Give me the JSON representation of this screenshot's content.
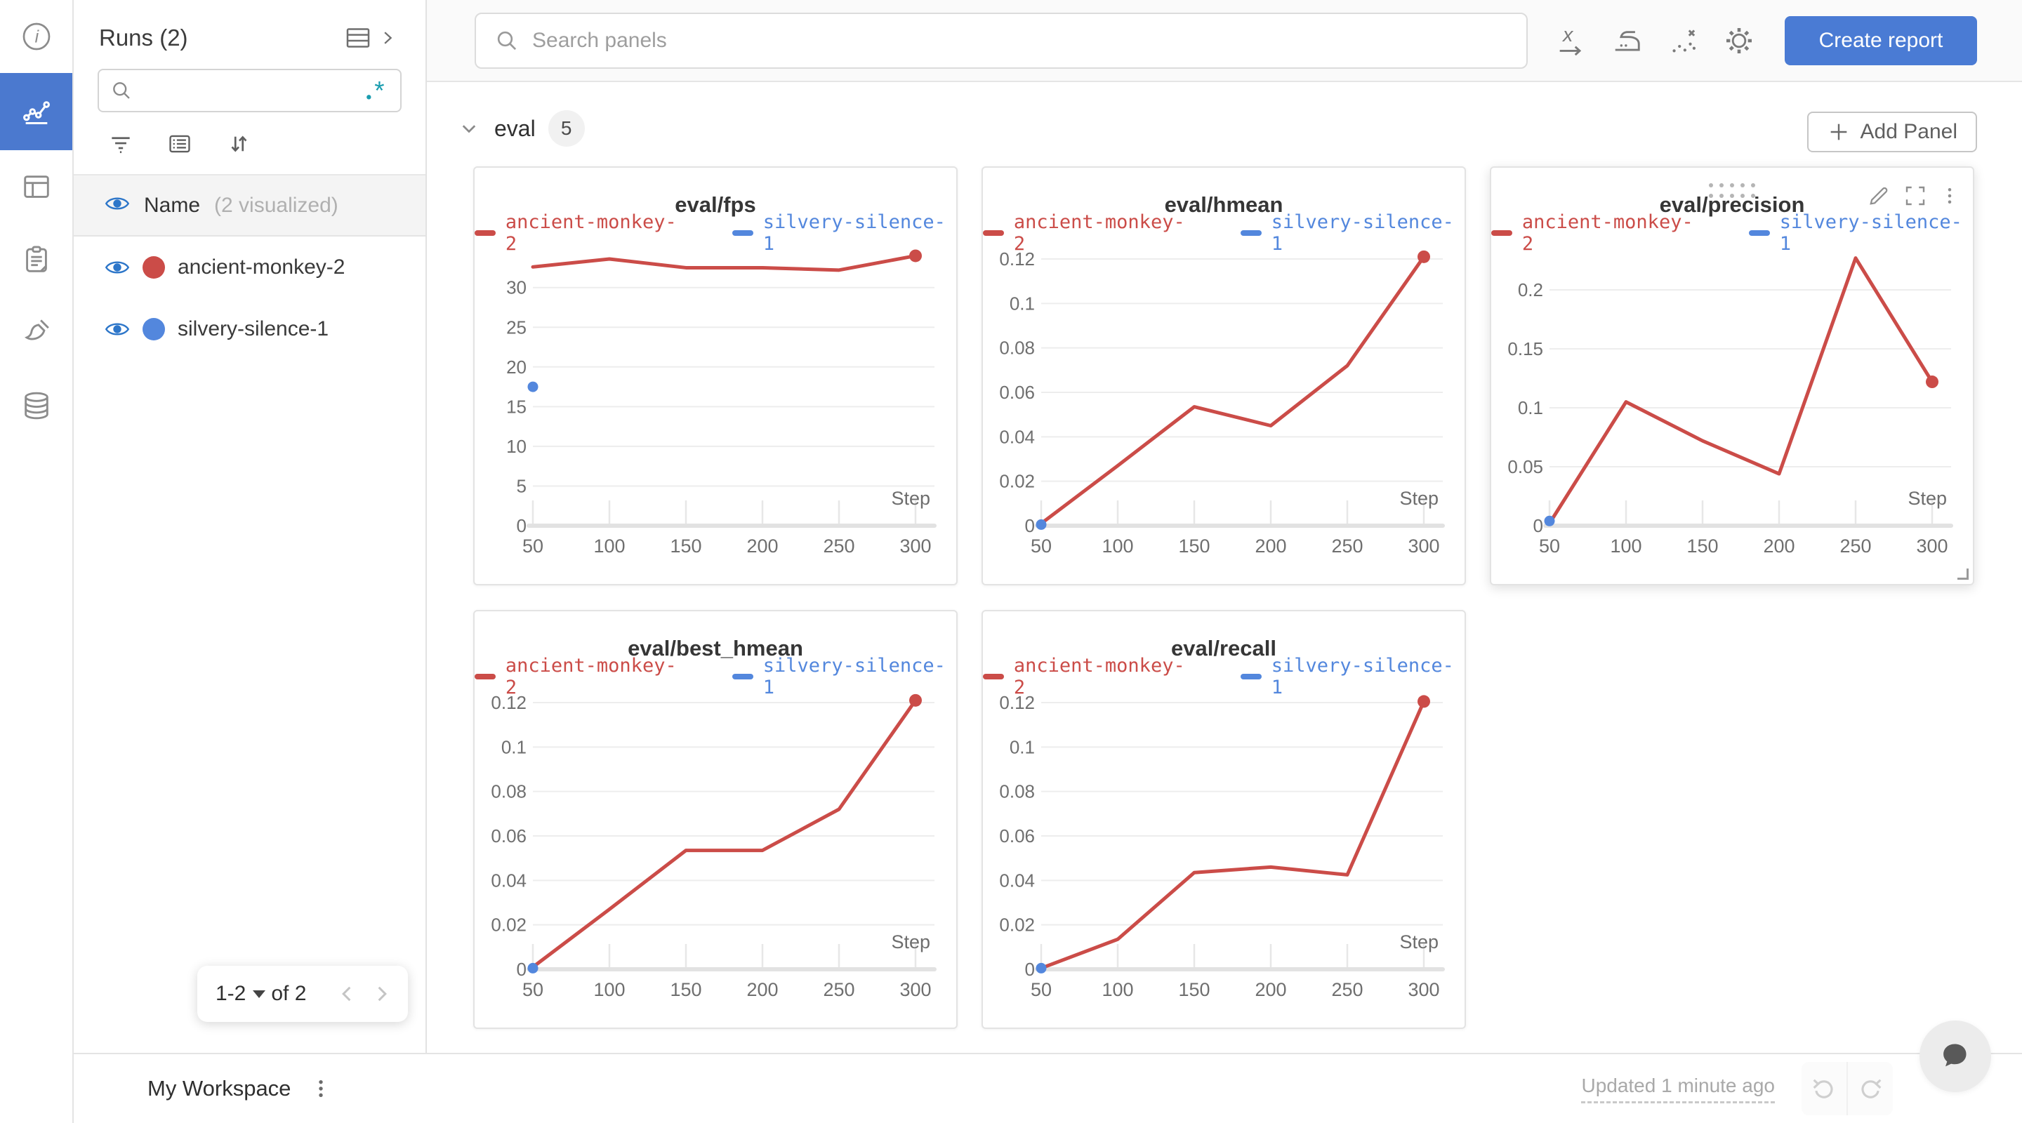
{
  "colors": {
    "accent_blue": "#4a7bd4",
    "rail_active_blue": "#4b79cf",
    "run_red": "#CB4C48",
    "run_blue": "#5387DD",
    "eye_blue": "#2d76c9",
    "regex_teal": "#1a9daf"
  },
  "rail": {
    "items": [
      "info",
      "line-chart",
      "table",
      "clipboard",
      "brush",
      "database"
    ],
    "active_item": "line-chart"
  },
  "sidebar": {
    "title": "Runs (2)",
    "search_value": "",
    "search_placeholder": "",
    "regex_label": ".*",
    "header_row": {
      "label": "Name",
      "annotation": "(2 visualized)"
    },
    "runs": [
      {
        "name": "ancient-monkey-2",
        "color": "#CB4C48",
        "visible": true
      },
      {
        "name": "silvery-silence-1",
        "color": "#5387DD",
        "visible": true
      }
    ],
    "pagination": {
      "range_label": "1-2",
      "total_label": "of 2"
    }
  },
  "topbar": {
    "search_placeholder": "Search panels",
    "create_report_label": "Create report"
  },
  "section": {
    "title": "eval",
    "badge": "5",
    "add_panel_label": "Add Panel"
  },
  "footer": {
    "workspace_label": "My Workspace",
    "updated_label": "Updated 1 minute ago"
  },
  "chart_data": [
    {
      "type": "line",
      "title": "eval/fps",
      "xlabel": "Step",
      "grid": true,
      "legend_position": "top",
      "xlim": [
        50,
        300
      ],
      "xticks": [
        50,
        100,
        150,
        200,
        250,
        300
      ],
      "ylim": [
        0,
        33.6
      ],
      "yticks": [
        0,
        5,
        10,
        15,
        20,
        25,
        30
      ],
      "series": [
        {
          "name": "ancient-monkey-2",
          "color": "#CB4C48",
          "x": [
            50,
            100,
            150,
            200,
            250,
            300
          ],
          "values": [
            32.6,
            33.6,
            32.5,
            32.5,
            32.2,
            34.0
          ],
          "end_dot": true
        },
        {
          "name": "silvery-silence-1",
          "color": "#5387DD",
          "x": [
            50
          ],
          "values": [
            17.5
          ],
          "point_only": true
        }
      ]
    },
    {
      "type": "line",
      "title": "eval/hmean",
      "xlabel": "Step",
      "grid": true,
      "legend_position": "top",
      "xlim": [
        50,
        300
      ],
      "xticks": [
        50,
        100,
        150,
        200,
        250,
        300
      ],
      "ylim": [
        0,
        0.12
      ],
      "yticks": [
        0,
        0.02,
        0.04,
        0.06,
        0.08,
        0.1,
        0.12
      ],
      "series": [
        {
          "name": "ancient-monkey-2",
          "color": "#CB4C48",
          "x": [
            50,
            100,
            150,
            200,
            250,
            300
          ],
          "values": [
            0.001,
            0.027,
            0.0535,
            0.045,
            0.072,
            0.121
          ],
          "end_dot": true
        },
        {
          "name": "silvery-silence-1",
          "color": "#5387DD",
          "x": [
            50
          ],
          "values": [
            0.0005
          ],
          "point_only": true
        }
      ]
    },
    {
      "type": "line",
      "title": "eval/precision",
      "xlabel": "Step",
      "grid": true,
      "legend_position": "top",
      "hover_controls": true,
      "xlim": [
        50,
        300
      ],
      "xticks": [
        50,
        100,
        150,
        200,
        250,
        300
      ],
      "ylim": [
        0,
        0.2262
      ],
      "yticks": [
        0,
        0.05,
        0.1,
        0.15,
        0.2
      ],
      "series": [
        {
          "name": "ancient-monkey-2",
          "color": "#CB4C48",
          "x": [
            50,
            100,
            150,
            200,
            250,
            300
          ],
          "values": [
            0.002,
            0.105,
            0.072,
            0.044,
            0.227,
            0.122
          ],
          "end_dot": true
        },
        {
          "name": "silvery-silence-1",
          "color": "#5387DD",
          "x": [
            50
          ],
          "values": [
            0.004
          ],
          "point_only": true
        }
      ]
    },
    {
      "type": "line",
      "title": "eval/best_hmean",
      "xlabel": "Step",
      "grid": true,
      "legend_position": "top",
      "xlim": [
        50,
        300
      ],
      "xticks": [
        50,
        100,
        150,
        200,
        250,
        300
      ],
      "ylim": [
        0,
        0.12
      ],
      "yticks": [
        0,
        0.02,
        0.04,
        0.06,
        0.08,
        0.1,
        0.12
      ],
      "series": [
        {
          "name": "ancient-monkey-2",
          "color": "#CB4C48",
          "x": [
            50,
            100,
            150,
            200,
            250,
            300
          ],
          "values": [
            0.001,
            0.027,
            0.0535,
            0.0535,
            0.072,
            0.121
          ],
          "end_dot": true
        },
        {
          "name": "silvery-silence-1",
          "color": "#5387DD",
          "x": [
            50
          ],
          "values": [
            0.0005
          ],
          "point_only": true
        }
      ]
    },
    {
      "type": "line",
      "title": "eval/recall",
      "xlabel": "Step",
      "grid": true,
      "legend_position": "top",
      "xlim": [
        50,
        300
      ],
      "xticks": [
        50,
        100,
        150,
        200,
        250,
        300
      ],
      "ylim": [
        0,
        0.12
      ],
      "yticks": [
        0,
        0.02,
        0.04,
        0.06,
        0.08,
        0.1,
        0.12
      ],
      "series": [
        {
          "name": "ancient-monkey-2",
          "color": "#CB4C48",
          "x": [
            50,
            100,
            150,
            200,
            250,
            300
          ],
          "values": [
            0.0005,
            0.0135,
            0.0435,
            0.046,
            0.0425,
            0.1205
          ],
          "end_dot": true
        },
        {
          "name": "silvery-silence-1",
          "color": "#5387DD",
          "x": [
            50
          ],
          "values": [
            0.0005
          ],
          "point_only": true
        }
      ]
    }
  ]
}
